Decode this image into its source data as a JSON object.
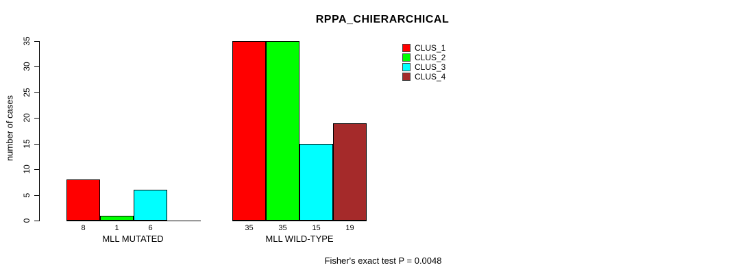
{
  "chart_data": {
    "type": "bar",
    "title": "RPPA_CHIERARCHICAL",
    "ylabel": "number of cases",
    "xlabel": "",
    "categories": [
      "MLL MUTATED",
      "MLL WILD-TYPE"
    ],
    "series": [
      {
        "name": "CLUS_1",
        "color": "#ff0000",
        "values": [
          8,
          35
        ]
      },
      {
        "name": "CLUS_2",
        "color": "#00ff00",
        "values": [
          1,
          35
        ]
      },
      {
        "name": "CLUS_3",
        "color": "#00ffff",
        "values": [
          6,
          15
        ]
      },
      {
        "name": "CLUS_4",
        "color": "#a52a2a",
        "values": [
          null,
          19
        ]
      }
    ],
    "bar_labels": [
      [
        "8",
        "1",
        "6",
        ""
      ],
      [
        "35",
        "35",
        "15",
        "19"
      ]
    ],
    "ylim": [
      0,
      35
    ],
    "yticks": [
      0,
      5,
      10,
      15,
      20,
      25,
      30,
      35
    ],
    "grid": false,
    "legend_position": "top-right",
    "annotation": "Fisher's exact test P = 0.0048"
  }
}
